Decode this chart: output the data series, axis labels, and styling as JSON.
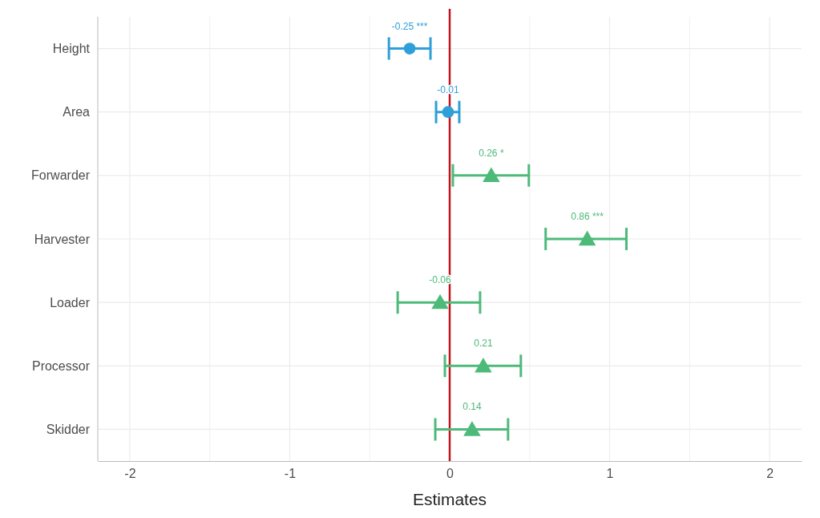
{
  "chart_data": {
    "type": "scatter",
    "orientation": "horizontal",
    "xlabel": "Estimates",
    "categories": [
      "Height",
      "Area",
      "Forwarder",
      "Harvester",
      "Loader",
      "Processor",
      "Skidder"
    ],
    "series": [
      {
        "color": "#2e9fd8",
        "marker": "circle",
        "values": [
          -0.25,
          -0.01,
          null,
          null,
          null,
          null,
          null
        ],
        "errors": [
          [
            -0.38,
            -0.12
          ],
          [
            -0.085,
            0.06
          ],
          null,
          null,
          null,
          null,
          null
        ],
        "value_labels": [
          "-0.25 ***",
          "-0.01",
          null,
          null,
          null,
          null,
          null
        ]
      },
      {
        "color": "#4dba7a",
        "marker": "triangle",
        "values": [
          null,
          null,
          0.26,
          0.86,
          -0.06,
          0.21,
          0.14
        ],
        "errors": [
          null,
          null,
          [
            0.02,
            0.495
          ],
          [
            0.6,
            1.105
          ],
          [
            -0.325,
            0.19
          ],
          [
            -0.03,
            0.445
          ],
          [
            -0.09,
            0.365
          ]
        ],
        "value_labels": [
          null,
          null,
          "0.26 *",
          "0.86 ***",
          "-0.06",
          "0.21",
          "0.14"
        ]
      }
    ],
    "xlim": [
      -2.2,
      2.2
    ],
    "xticks": [
      -2,
      {
        "value": -1.5,
        "label": null
      },
      -1,
      {
        "value": -0.5,
        "label": null
      },
      0,
      {
        "value": 0.5,
        "label": null
      },
      1,
      {
        "value": 1.5,
        "label": null
      },
      2
    ],
    "grid": true,
    "ref_lines": [
      {
        "axis": "x",
        "value": 0,
        "color": "#c0141c"
      }
    ]
  }
}
